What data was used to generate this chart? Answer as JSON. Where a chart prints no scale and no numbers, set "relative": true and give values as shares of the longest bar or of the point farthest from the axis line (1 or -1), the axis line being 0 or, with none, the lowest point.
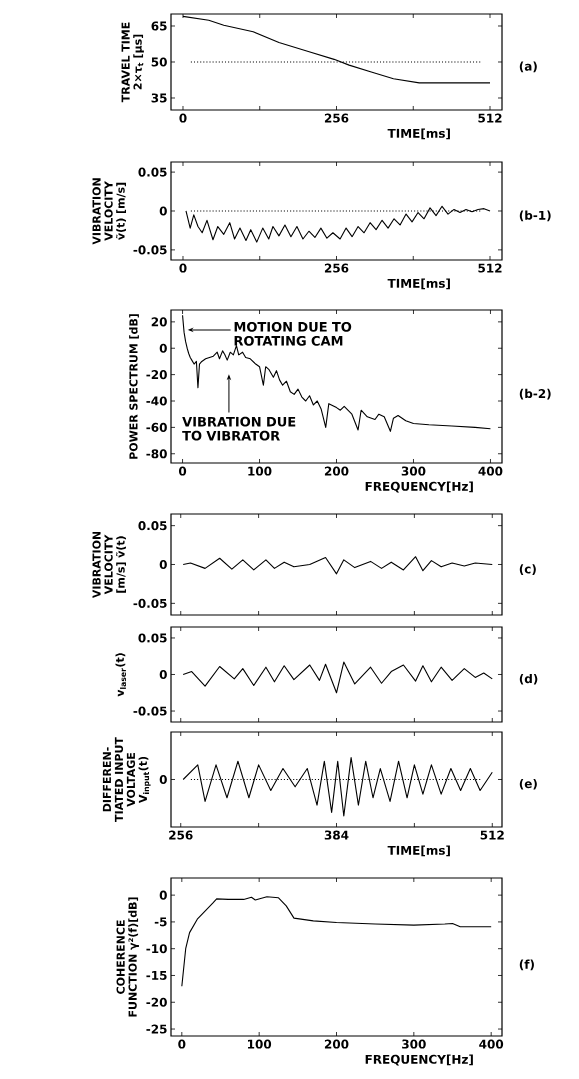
{
  "chart_data": [
    {
      "type": "line",
      "ylabel": "TRAVEL TIME 2×τ$_{t}$ [μs]",
      "xlabel": "TIME[ms]",
      "color": "#000000",
      "x": [
        0,
        43,
        68,
        117,
        160,
        209,
        252,
        277,
        314,
        351,
        394,
        450,
        512
      ],
      "values": [
        69,
        67.4,
        65.3,
        62.6,
        58.1,
        54.4,
        51.1,
        48.7,
        45.8,
        43,
        41.3,
        41.3,
        41.3
      ],
      "xlim": [
        -20,
        532
      ],
      "ylim": [
        30,
        70
      ],
      "xticks": [
        0,
        {
          "value": 128,
          "label": null
        },
        256,
        {
          "value": 384,
          "label": null
        },
        512
      ],
      "yticks": [
        35,
        50,
        65
      ],
      "ref_lines": [
        {
          "axis": "y",
          "value": 50,
          "line_style": "dotted"
        }
      ],
      "annotations": [
        "(a)"
      ]
    },
    {
      "type": "line",
      "ylabel": "VIBRATION VELOCITY ṽ(t) [m/s]",
      "xlabel": "TIME[ms]",
      "color": "#000000",
      "x": [
        5,
        12,
        18,
        25,
        32,
        40,
        50,
        58,
        68,
        78,
        86,
        95,
        105,
        113,
        123,
        133,
        143,
        150,
        160,
        170,
        180,
        190,
        200,
        210,
        220,
        230,
        240,
        250,
        262,
        272,
        282,
        292,
        302,
        312,
        322,
        332,
        342,
        352,
        362,
        372,
        382,
        392,
        402,
        412,
        422,
        432,
        442,
        452,
        462,
        472,
        482,
        492,
        502,
        512
      ],
      "values": [
        0,
        -0.022,
        -0.005,
        -0.02,
        -0.028,
        -0.012,
        -0.037,
        -0.02,
        -0.03,
        -0.015,
        -0.036,
        -0.022,
        -0.038,
        -0.024,
        -0.04,
        -0.022,
        -0.036,
        -0.02,
        -0.032,
        -0.018,
        -0.033,
        -0.02,
        -0.036,
        -0.026,
        -0.034,
        -0.022,
        -0.035,
        -0.028,
        -0.036,
        -0.022,
        -0.033,
        -0.02,
        -0.028,
        -0.015,
        -0.024,
        -0.012,
        -0.022,
        -0.01,
        -0.018,
        -0.004,
        -0.014,
        -0.002,
        -0.01,
        0.004,
        -0.006,
        0.006,
        -0.004,
        0.002,
        -0.002,
        0.002,
        -0.001,
        0.002,
        0.003,
        0
      ],
      "xlim": [
        -20,
        532
      ],
      "ylim": [
        -0.063,
        0.063
      ],
      "xticks": [
        0,
        {
          "value": 128,
          "label": null
        },
        256,
        {
          "value": 384,
          "label": null
        },
        512
      ],
      "yticks": [
        -0.05,
        0,
        0.05
      ],
      "ref_lines": [
        {
          "axis": "y",
          "value": 0,
          "line_style": "dotted"
        }
      ],
      "annotations": [
        "(b-1)"
      ]
    },
    {
      "type": "line",
      "ylabel": "POWER SPECTRUM [dB]",
      "xlabel": "FREQUENCY[Hz]",
      "color": "#000000",
      "x": [
        0,
        2,
        4,
        6,
        8,
        10,
        12,
        15,
        18,
        20,
        22,
        25,
        30,
        35,
        40,
        45,
        48,
        52,
        55,
        58,
        62,
        66,
        70,
        73,
        78,
        82,
        88,
        95,
        100,
        105,
        108,
        112,
        118,
        122,
        126,
        130,
        135,
        140,
        145,
        150,
        155,
        160,
        165,
        170,
        175,
        180,
        186,
        190,
        200,
        205,
        210,
        220,
        228,
        232,
        240,
        250,
        255,
        262,
        270,
        274,
        280,
        290,
        300,
        320,
        350,
        380,
        400
      ],
      "values": [
        25,
        12,
        5,
        0,
        -4,
        -7,
        -9,
        -12,
        -10,
        -30,
        -12,
        -10,
        -8,
        -7,
        -6,
        -3,
        -8,
        -2,
        -5,
        -9,
        -3,
        -5,
        2,
        -5,
        -3,
        -7,
        -8,
        -12,
        -14,
        -28,
        -14,
        -16,
        -22,
        -17,
        -24,
        -28,
        -25,
        -33,
        -35,
        -31,
        -37,
        -40,
        -36,
        -43,
        -40,
        -46,
        -60,
        -42,
        -45,
        -47,
        -44,
        -50,
        -62,
        -47,
        -52,
        -54,
        -50,
        -52,
        -63,
        -53,
        -51,
        -55,
        -57,
        -58,
        -59,
        -60,
        -61
      ],
      "xlim": [
        -15,
        415
      ],
      "ylim": [
        -87,
        29
      ],
      "xticks": [
        0,
        100,
        200,
        300,
        400
      ],
      "yticks": [
        -80,
        -60,
        -40,
        -20,
        0,
        20
      ],
      "annotations": [
        "(b-2)",
        "MOTION DUE TO ROTATING CAM",
        "VIBRATION DUE TO VIBRATOR"
      ]
    },
    {
      "type": "line",
      "ylabel": "VIBRATION VELOCITY [m/s] ṽ(t)",
      "color": "#000000",
      "x": [
        258,
        264,
        276,
        288,
        298,
        307,
        316,
        326,
        333,
        341,
        349,
        362,
        375,
        384,
        390,
        399,
        412,
        421,
        429,
        439,
        449,
        455,
        462,
        470,
        479,
        489,
        498,
        512
      ],
      "values": [
        0,
        0.002,
        -0.005,
        0.008,
        -0.006,
        0.006,
        -0.007,
        0.006,
        -0.005,
        0.003,
        -0.003,
        0,
        0.009,
        -0.012,
        0.006,
        -0.004,
        0.004,
        -0.005,
        0.003,
        -0.007,
        0.01,
        -0.008,
        0.005,
        -0.003,
        0.002,
        -0.002,
        0.002,
        0
      ],
      "xlim": [
        248,
        520
      ],
      "ylim": [
        -0.065,
        0.065
      ],
      "xticks": [
        256,
        {
          "value": 320,
          "label": null
        },
        384,
        {
          "value": 448,
          "label": null
        },
        512
      ],
      "yticks": [
        -0.05,
        0,
        0.05
      ],
      "tick_labels": "y",
      "annotations": [
        "(c)"
      ]
    },
    {
      "type": "line",
      "ylabel": "v$_{laser}$(t)",
      "color": "#000000",
      "x": [
        258,
        265,
        276,
        288,
        300,
        307,
        316,
        326,
        333,
        341,
        349,
        362,
        370,
        375,
        384,
        390,
        399,
        412,
        421,
        429,
        439,
        449,
        455,
        462,
        470,
        479,
        489,
        498,
        505,
        512
      ],
      "values": [
        0,
        0.004,
        -0.016,
        0.011,
        -0.006,
        0.008,
        -0.015,
        0.01,
        -0.01,
        0.012,
        -0.007,
        0.013,
        -0.008,
        0.014,
        -0.025,
        0.017,
        -0.013,
        0.01,
        -0.012,
        0.004,
        0.013,
        -0.009,
        0.012,
        -0.01,
        0.01,
        -0.008,
        0.008,
        -0.004,
        0.002,
        -0.006
      ],
      "xlim": [
        248,
        520
      ],
      "ylim": [
        -0.065,
        0.065
      ],
      "xticks": [
        256,
        {
          "value": 320,
          "label": null
        },
        384,
        {
          "value": 448,
          "label": null
        },
        512
      ],
      "yticks": [
        -0.05,
        0,
        0.05
      ],
      "tick_labels": "y",
      "annotations": [
        "(d)"
      ]
    },
    {
      "type": "line",
      "ylabel": "DIFFEREN- TIATED INPUT VOLTAGE V$_{input}$(t)",
      "xlabel": "TIME[ms]",
      "color": "#000000",
      "relative": true,
      "x": [
        258,
        270,
        276,
        285,
        294,
        303,
        312,
        320,
        330,
        340,
        350,
        360,
        368,
        374,
        380,
        385,
        390,
        396,
        402,
        408,
        414,
        420,
        428,
        435,
        442,
        448,
        455,
        462,
        470,
        478,
        486,
        494,
        502,
        512
      ],
      "values": [
        0,
        0.4,
        -0.6,
        0.4,
        -0.5,
        0.5,
        -0.5,
        0.4,
        -0.3,
        0.3,
        -0.2,
        0.3,
        -0.7,
        0.5,
        -0.9,
        0.5,
        -1,
        0.6,
        -0.7,
        0.5,
        -0.5,
        0.3,
        -0.6,
        0.5,
        -0.5,
        0.4,
        -0.4,
        0.4,
        -0.4,
        0.3,
        -0.3,
        0.3,
        -0.3,
        0.2
      ],
      "xlim": [
        248,
        520
      ],
      "xticks": [
        256,
        {
          "value": 320,
          "label": null
        },
        384,
        {
          "value": 448,
          "label": null
        },
        512
      ],
      "ref_lines": [
        {
          "axis": "y",
          "value": 0,
          "label": "0",
          "line_style": "dotted"
        }
      ],
      "annotations": [
        "(e)"
      ]
    },
    {
      "type": "line",
      "ylabel": "COHERENCE FUNCTION γ²(f)[dB]",
      "xlabel": "FREQUENCY[Hz]",
      "color": "#000000",
      "x": [
        0,
        5,
        10,
        20,
        30,
        40,
        45,
        60,
        80,
        90,
        95,
        110,
        125,
        135,
        145,
        170,
        200,
        250,
        300,
        340,
        350,
        360,
        400
      ],
      "values": [
        -17,
        -10,
        -7,
        -4.5,
        -3,
        -1.5,
        -0.7,
        -0.8,
        -0.8,
        -0.4,
        -0.9,
        -0.3,
        -0.5,
        -2,
        -4.3,
        -4.8,
        -5.1,
        -5.4,
        -5.6,
        -5.4,
        -5.3,
        -5.9,
        -5.9
      ],
      "xlim": [
        -14,
        414
      ],
      "ylim": [
        -26.3,
        3.2
      ],
      "xticks": [
        0,
        100,
        200,
        300,
        400
      ],
      "yticks": [
        -25,
        -20,
        -15,
        -10,
        -5,
        0
      ],
      "annotations": [
        "(f)"
      ]
    }
  ]
}
